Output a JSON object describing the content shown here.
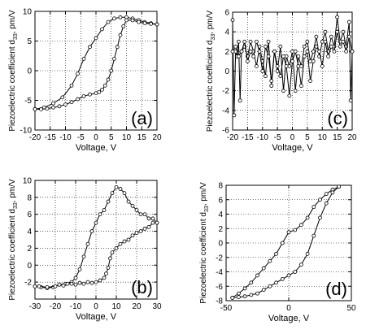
{
  "chart_data": [
    {
      "panel_label": "(a)",
      "type": "line",
      "xlabel": "Voltage, V",
      "ylabel": "Piezoelectric coefficient d",
      "ylabel_subscript": "33",
      "ylabel_unit": ", pm/V",
      "xlim": [
        -20,
        20
      ],
      "ylim": [
        -10,
        10
      ],
      "xticks": [
        -20,
        -15,
        -10,
        -5,
        0,
        5,
        10,
        15,
        20
      ],
      "yticks": [
        -10,
        -5,
        0,
        5,
        10
      ],
      "grid": true,
      "series": [
        {
          "x": [
            -20,
            -17,
            -14,
            -11,
            -8,
            -6,
            -4,
            -2,
            0,
            2,
            4,
            6,
            8,
            10,
            12,
            14,
            16,
            18,
            20
          ],
          "y": [
            -6.5,
            -6.2,
            -5.5,
            -4.5,
            -2.5,
            -0.5,
            2,
            4,
            5.5,
            7,
            8.2,
            8.8,
            9,
            9,
            8.8,
            8.5,
            8.2,
            8,
            7.8
          ]
        },
        {
          "x": [
            20,
            18,
            16,
            14,
            12,
            10,
            9,
            8,
            7,
            6,
            5,
            4,
            3,
            2,
            1,
            0,
            -2,
            -4,
            -6,
            -8,
            -10,
            -12,
            -14,
            -16,
            -18,
            -20
          ],
          "y": [
            7.8,
            7.9,
            8,
            8.2,
            8.5,
            8.5,
            7.5,
            6,
            4,
            2,
            0,
            -1.5,
            -2.5,
            -3.2,
            -3.6,
            -3.8,
            -4,
            -4.3,
            -4.8,
            -5.3,
            -5.7,
            -6,
            -6.2,
            -6.4,
            -6.5,
            -6.5
          ]
        }
      ]
    },
    {
      "panel_label": "(c)",
      "type": "line",
      "xlabel": "Voltage, V",
      "ylabel": "Piezoelectric coefficient d",
      "ylabel_subscript": "33",
      "ylabel_unit": ", pm/V",
      "xlim": [
        -20,
        20
      ],
      "ylim": [
        -6,
        6
      ],
      "xticks": [
        -20,
        -15,
        -10,
        -5,
        0,
        5,
        10,
        15,
        20
      ],
      "yticks": [
        -6,
        -4,
        -2,
        0,
        2,
        4,
        6
      ],
      "grid": true,
      "series": [
        {
          "x": [
            -20,
            -19.5,
            -19,
            -18.5,
            -18,
            -17.5,
            -17,
            -16,
            -15,
            -14,
            -13,
            -12,
            -11,
            -10,
            -9,
            -8,
            -7,
            -6,
            -5,
            -4,
            -3,
            -2,
            -1,
            0,
            1,
            2,
            3,
            4,
            5,
            6,
            7,
            8,
            9,
            10,
            11,
            12,
            13,
            14,
            15,
            16,
            17,
            18,
            19,
            19.5,
            20
          ],
          "y": [
            5.2,
            -4.5,
            2,
            1.5,
            3,
            -3,
            2,
            2.5,
            1.5,
            3,
            2,
            0.5,
            2.5,
            1,
            -0.5,
            3,
            -1.5,
            2,
            0,
            2.5,
            -2,
            1.5,
            0.5,
            2,
            -2,
            1.5,
            0.5,
            2.5,
            3,
            1,
            2,
            3.5,
            1.5,
            3,
            4,
            2,
            3.5,
            2.5,
            5.5,
            3,
            4,
            2.5,
            5,
            -3,
            2
          ]
        },
        {
          "x": [
            20,
            19,
            18,
            17,
            16,
            15,
            14,
            13,
            12,
            11,
            10,
            9,
            8,
            7,
            6,
            5,
            4,
            3,
            2,
            1,
            0,
            -1,
            -2,
            -3,
            -4,
            -5,
            -6,
            -7,
            -8,
            -9,
            -10,
            -11,
            -12,
            -13,
            -14,
            -15,
            -16,
            -17,
            -18,
            -19,
            -20
          ],
          "y": [
            2,
            3.5,
            2,
            3,
            2.5,
            4,
            2,
            2.5,
            1.5,
            3,
            0.5,
            2,
            2.5,
            1,
            -1,
            2,
            1.5,
            -1.5,
            0.5,
            2,
            1,
            -2.5,
            0.5,
            1.5,
            -0.5,
            0.5,
            2,
            -1,
            1.5,
            2.5,
            0,
            2,
            3,
            1.5,
            2,
            1,
            3,
            2,
            1.5,
            2.5,
            2
          ]
        }
      ]
    },
    {
      "panel_label": "(b)",
      "type": "line",
      "xlabel": "Voltage, V",
      "ylabel": "Piezoelectric coefficient d",
      "ylabel_subscript": "33",
      "ylabel_unit": ", pm/V",
      "xlim": [
        -30,
        30
      ],
      "ylim": [
        -4,
        10
      ],
      "xticks": [
        -30,
        -20,
        -10,
        0,
        10,
        20,
        30
      ],
      "yticks": [
        -2,
        0,
        2,
        4,
        6,
        8,
        10
      ],
      "grid": true,
      "series": [
        {
          "x": [
            -30,
            -27,
            -24,
            -21,
            -18,
            -15,
            -12,
            -10,
            -8,
            -6,
            -4,
            -2,
            0,
            2,
            4,
            6,
            8,
            10,
            12,
            14,
            16,
            18,
            20,
            22,
            24,
            26,
            28,
            30
          ],
          "y": [
            -2.5,
            -2.6,
            -2.7,
            -2.6,
            -2.3,
            -2.2,
            -2,
            -1.5,
            -0.5,
            1,
            2.5,
            4,
            5,
            6,
            6.5,
            7.5,
            8.5,
            9.2,
            9,
            8.5,
            7.5,
            7,
            6.5,
            6,
            6,
            5.5,
            5.5,
            5
          ]
        },
        {
          "x": [
            30,
            28,
            26,
            24,
            22,
            20,
            18,
            16,
            14,
            12,
            10,
            8,
            7,
            6,
            5,
            4,
            2,
            0,
            -2,
            -4,
            -6,
            -8,
            -10,
            -12,
            -14,
            -16,
            -18,
            -20,
            -24,
            -28,
            -30
          ],
          "y": [
            5,
            5,
            4.5,
            4.3,
            4,
            3.8,
            3.5,
            3,
            2.8,
            2.5,
            2,
            1.5,
            0.8,
            -0.3,
            -1,
            -1.5,
            -1.8,
            -2,
            -2.1,
            -2,
            -2.2,
            -2.1,
            -2.3,
            -2.2,
            -2.2,
            -2.4,
            -2.3,
            -2.5,
            -2.6,
            -2.5,
            -2.5
          ]
        }
      ]
    },
    {
      "panel_label": "(d)",
      "type": "line",
      "xlabel": "Voltage, V",
      "ylabel": "Piezoelectric coefficient d",
      "ylabel_subscript": "33",
      "ylabel_unit": ", pm/V",
      "xlim": [
        -50,
        50
      ],
      "ylim": [
        -8,
        8
      ],
      "xticks": [
        -50,
        0,
        50
      ],
      "xticklabels": [
        "-50",
        "0",
        "50"
      ],
      "yticks": [
        -8,
        -6,
        -4,
        -2,
        0,
        2,
        4,
        6,
        8
      ],
      "grid": true,
      "series": [
        {
          "x": [
            -45,
            -40,
            -35,
            -30,
            -25,
            -20,
            -15,
            -10,
            -5,
            0,
            5,
            10,
            15,
            20,
            25,
            30,
            35,
            40
          ],
          "y": [
            -7.6,
            -7,
            -6.3,
            -5.5,
            -4.5,
            -3.5,
            -2.5,
            -1.5,
            0,
            1.5,
            1.8,
            2.5,
            3.5,
            5,
            6,
            6.8,
            7.4,
            7.8
          ]
        },
        {
          "x": [
            40,
            35,
            30,
            25,
            20,
            15,
            10,
            5,
            0,
            -5,
            -10,
            -15,
            -20,
            -25,
            -30,
            -35,
            -40,
            -45
          ],
          "y": [
            7.8,
            7,
            5.5,
            3.5,
            1,
            -1.5,
            -3,
            -4,
            -4.5,
            -5,
            -5.5,
            -6,
            -6.5,
            -7,
            -7.2,
            -7.4,
            -7.5,
            -7.6
          ]
        }
      ]
    }
  ]
}
